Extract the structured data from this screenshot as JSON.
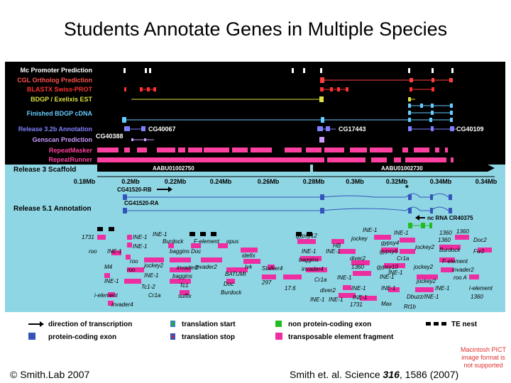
{
  "slide": {
    "title": "Students Annotate Genes in Multiple Species",
    "copyright": "© Smith.Lab 2007",
    "citation_prefix": "Smith et. al. Science ",
    "citation_volume": "316",
    "citation_suffix": ", 1586 (2007)",
    "pict_notice": "Macintosh PICT image format is not supported"
  },
  "figure": {
    "tracks": [
      {
        "label": "Mc Promoter Prediction",
        "color": "#ffffff"
      },
      {
        "label": "CGL Ortholog Prediction",
        "color": "#ff4040"
      },
      {
        "label": "BLASTX Swiss-PROT",
        "color": "#ff3030"
      },
      {
        "label": "BDGP / Exelixis EST",
        "color": "#dde040"
      },
      {
        "label": "Finished BDGP cDNA",
        "color": "#66ccff"
      },
      {
        "label": "Release 3.2b Annotation",
        "color": "#8080ff"
      },
      {
        "label": "Genscan Prediction",
        "color": "#cc99ff"
      },
      {
        "label": "RepeatMasker",
        "color": "#ff40a0"
      },
      {
        "label": "RepeatRunner",
        "color": "#ff40a0"
      }
    ],
    "gene_labels_r3": {
      "cg40388": "CG40388",
      "cg40067": "CG40067",
      "cg17443": "CG17443",
      "cg40109": "CG40109"
    },
    "scaffold_label": "Release 3 Scaffold",
    "scaffold_ids": [
      "AABU01002750",
      "AABU01002730"
    ],
    "ruler_ticks": [
      "0.18Mb",
      "0.2Mb",
      "0.22Mb",
      "0.24Mb",
      "0.26Mb",
      "0.28Mb",
      "0.3Mb",
      "0.32Mb",
      "0.34Mb"
    ],
    "cg41520_rb": "CG41520-RB",
    "cg41520_ra": "CG41520-RA",
    "release51_label": "Release 5.1 Annotation",
    "asterisk": "*",
    "ncrna_label": "nc RNA CR40375",
    "te_labels": [
      "1731",
      "INE-1",
      "INE-1",
      "roo",
      "INE-1",
      "INE-1",
      "roo",
      "M4",
      "roo",
      "Burdock",
      "jockey2",
      "INE-1",
      "INE-1",
      "Tc1-2",
      "Cr1a",
      "baggins",
      "Doc",
      "invader2",
      "baggins",
      "Tc1",
      "suffix",
      "F-element",
      "opus",
      "invader2",
      "BATUMI",
      "Doc",
      "Burdock",
      "idefix",
      "Ivk",
      "Stalker4",
      "297",
      "17.6",
      "i-element",
      "invader4",
      "gypsy12",
      "jockey",
      "HB",
      "INE-1",
      "INE-1",
      "baggins",
      "invader4",
      "Cr1a",
      "diver2",
      "INE-1",
      "INE-1",
      "INE-1",
      "1360",
      "diver2",
      "INE-1",
      "INE-1",
      "1731",
      "Max",
      "INE-1",
      "gypsy4",
      "gypsy6",
      "gypsy10",
      "INE-1",
      "INE-1",
      "jockey2",
      "Cr1a",
      "jockey2",
      "INE-1",
      "INE-1",
      "Rt1b",
      "Dbuzz/INE-1",
      "jockey2",
      "1360",
      "Burdock",
      "1360",
      "F-element",
      "invader2",
      "roo A",
      "INE-1",
      "i-element",
      "1360",
      "Doc2",
      "Fw3",
      "1360"
    ]
  },
  "legend": [
    {
      "key": "direction",
      "label": "direction of transcription"
    },
    {
      "key": "translation-start",
      "label": "translation start"
    },
    {
      "key": "ncrna",
      "label": "non protein-coding exon"
    },
    {
      "key": "te-nest",
      "label": "TE nest"
    },
    {
      "key": "protein-coding",
      "label": "protein-coding exon"
    },
    {
      "key": "translation-stop",
      "label": "translation stop"
    },
    {
      "key": "te-fragment",
      "label": "transposable element fragment"
    }
  ]
}
